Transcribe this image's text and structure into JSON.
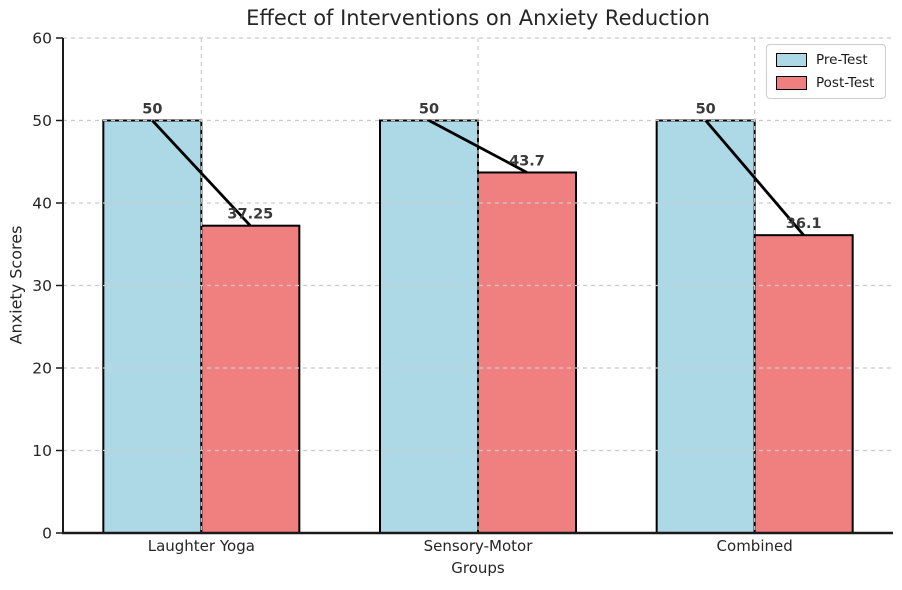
{
  "chart_data": {
    "type": "bar",
    "title": "Effect of Interventions on Anxiety Reduction",
    "xlabel": "Groups",
    "ylabel": "Anxiety Scores",
    "categories": [
      "Laughter Yoga",
      "Sensory-Motor",
      "Combined"
    ],
    "series": [
      {
        "name": "Pre-Test",
        "color": "#ADD8E6",
        "values": [
          50,
          50,
          50
        ],
        "value_labels": [
          "50",
          "50",
          "50"
        ]
      },
      {
        "name": "Post-Test",
        "color": "#F08080",
        "values": [
          37.25,
          43.7,
          36.1
        ],
        "value_labels": [
          "37.25",
          "43.7",
          "36.1"
        ]
      }
    ],
    "ylim": [
      0,
      60
    ],
    "yticks": [
      0,
      10,
      20,
      30,
      40,
      50,
      60
    ],
    "grid": true,
    "grid_style": "dashed",
    "grid_color": "#cbcbcb",
    "grid_on_top": true,
    "bar_edge_color": "#000000",
    "connector_lines": {
      "present": true,
      "color": "#000000",
      "description": "black line from top of each Pre-Test bar to top of matching Post-Test bar"
    },
    "value_label_color": "#3a3a3a",
    "axis_text_color": "#262626",
    "legend_position": "upper right"
  }
}
